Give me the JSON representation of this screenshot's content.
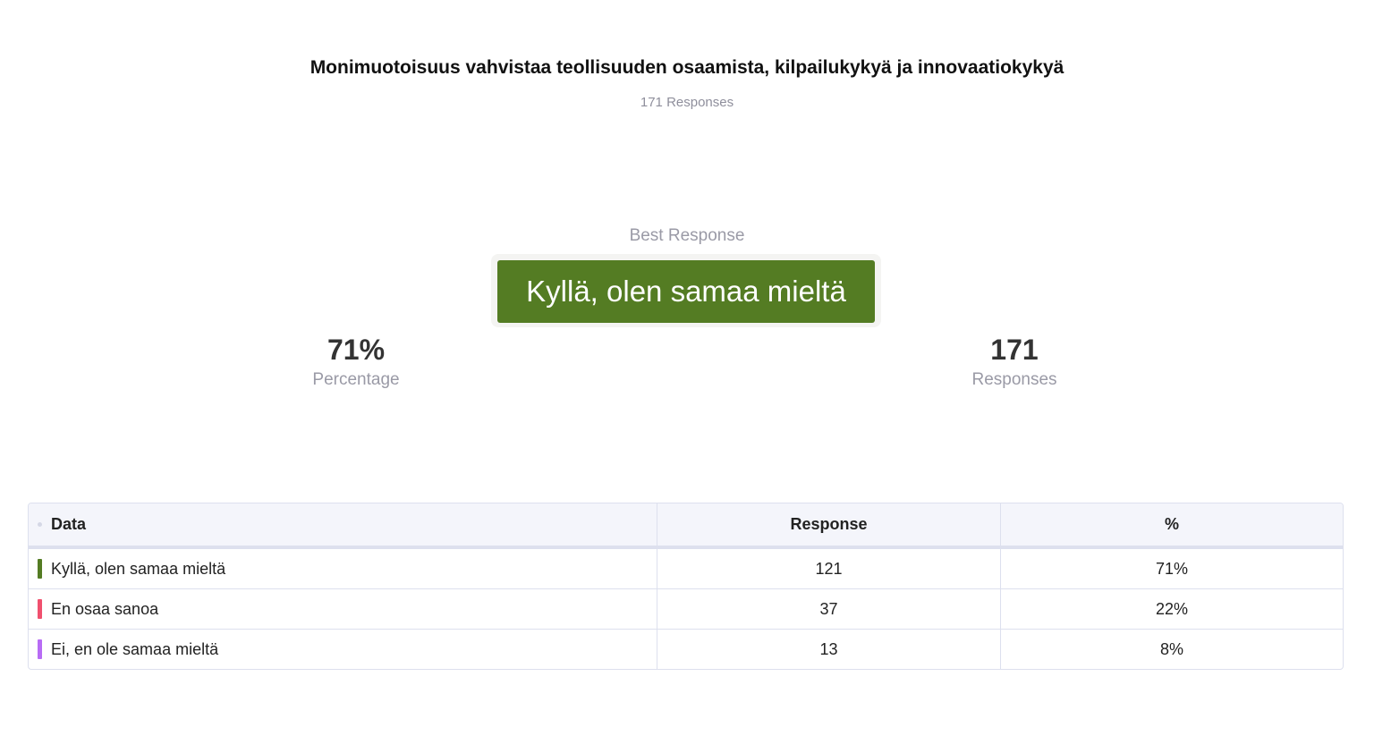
{
  "title": "Monimuotoisuus vahvistaa teollisuuden osaamista, kilpailukykyä ja innovaatiokykyä",
  "subtitle": "171 Responses",
  "best_response": {
    "label": "Best Response",
    "value": "Kyllä, olen samaa mieltä",
    "color": "#547c23"
  },
  "stats": {
    "percentage": {
      "value": "71%",
      "label": "Percentage"
    },
    "responses": {
      "value": "171",
      "label": "Responses"
    }
  },
  "table": {
    "headers": [
      "Data",
      "Response",
      "%"
    ],
    "rows": [
      {
        "label": "Kyllä, olen samaa mieltä",
        "response": "121",
        "percent": "71%",
        "color": "#547c23"
      },
      {
        "label": "En osaa sanoa",
        "response": "37",
        "percent": "22%",
        "color": "#f0506e"
      },
      {
        "label": "Ei, en ole samaa mieltä",
        "response": "13",
        "percent": "8%",
        "color": "#b86cf5"
      }
    ]
  }
}
